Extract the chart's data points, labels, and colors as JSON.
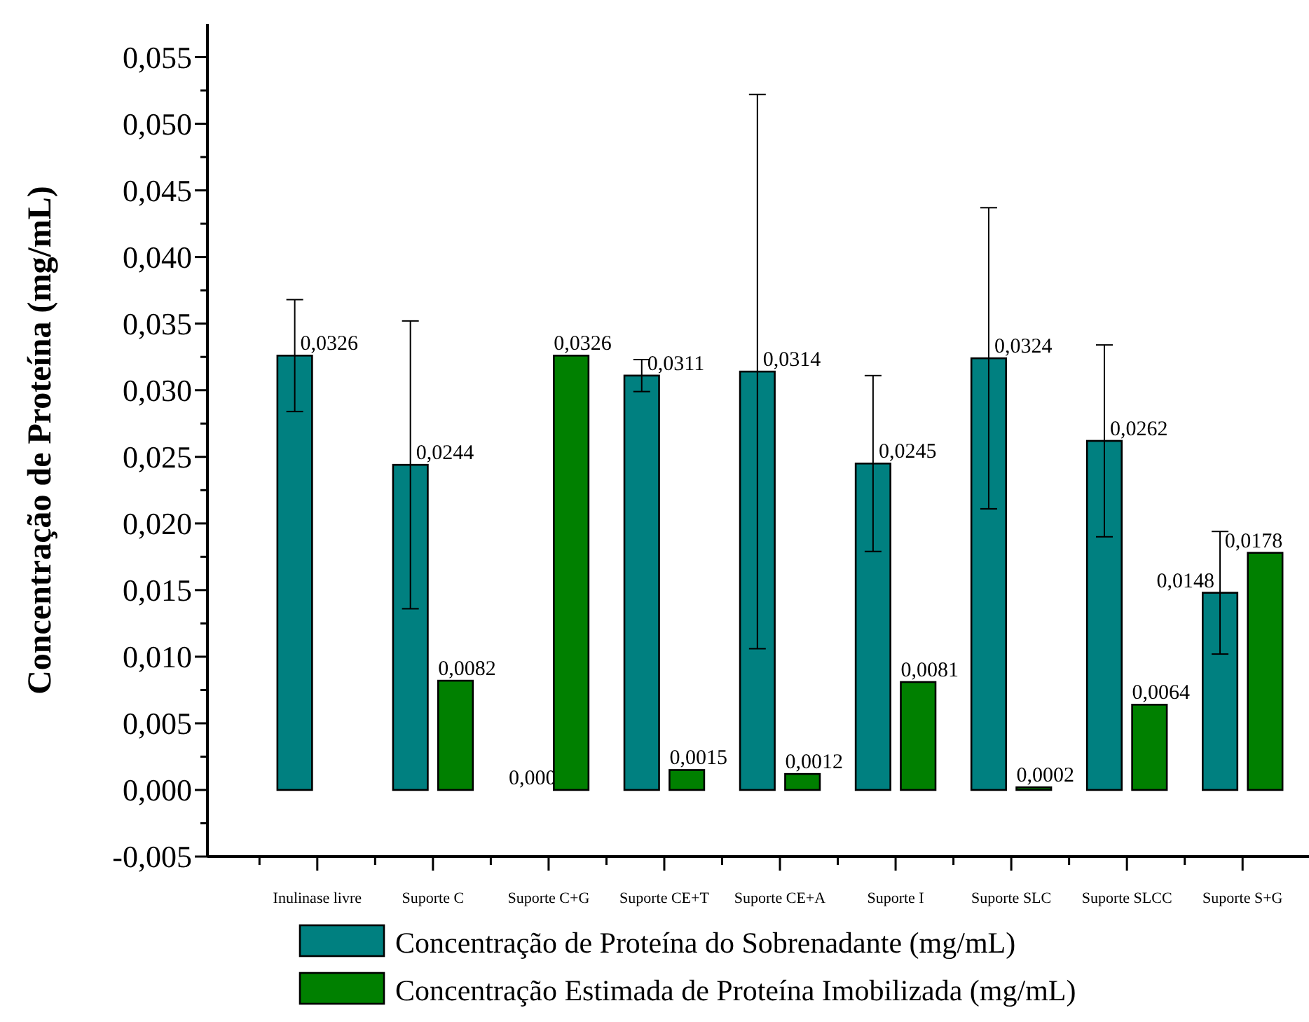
{
  "chart_data": {
    "type": "bar",
    "ylabel": "Concentração de Proteína (mg/mL)",
    "categories": [
      "Inulinase livre",
      "Suporte C",
      "Suporte C+G",
      "Suporte CE+T",
      "Suporte CE+A",
      "Suporte I",
      "Suporte SLC",
      "Suporte SLCC",
      "Suporte S+G"
    ],
    "series": [
      {
        "name": "Concentração de Proteína do Sobrenadante (mg/mL)",
        "color": "#008080",
        "values": [
          0.0326,
          0.0244,
          0,
          0.0311,
          0.0314,
          0.0245,
          0.0324,
          0.0262,
          0.0148
        ],
        "errors": [
          0.0042,
          0.0108,
          null,
          0.0012,
          0.0208,
          0.0066,
          0.0113,
          0.0072,
          0.0046
        ],
        "value_labels": [
          "0,0326",
          "0,0244",
          "0,000",
          "0,0311",
          "0,0314",
          "0,0245",
          "0,0324",
          "0,0262",
          "0,0148"
        ]
      },
      {
        "name": "Concentração Estimada de Proteína Imobilizada (mg/mL)",
        "color": "#008000",
        "values": [
          null,
          0.0082,
          0.0326,
          0.0015,
          0.0012,
          0.0081,
          0.0002,
          0.0064,
          0.0178
        ],
        "value_labels": [
          null,
          "0,0082",
          "0,0326",
          "0,0015",
          "0,0012",
          "0,0081",
          "0,0002",
          "0,0064",
          "0,0178"
        ]
      }
    ],
    "ylim": [
      -0.005,
      0.0575
    ],
    "yticks": [
      {
        "value": -0.005,
        "label": "-0,005"
      },
      {
        "value": -0.0025,
        "label": null
      },
      {
        "value": 0,
        "label": "0,000"
      },
      {
        "value": 0.0025,
        "label": null
      },
      {
        "value": 0.005,
        "label": "0,005"
      },
      {
        "value": 0.0075,
        "label": null
      },
      {
        "value": 0.01,
        "label": "0,010"
      },
      {
        "value": 0.0125,
        "label": null
      },
      {
        "value": 0.015,
        "label": "0,015"
      },
      {
        "value": 0.0175,
        "label": null
      },
      {
        "value": 0.02,
        "label": "0,020"
      },
      {
        "value": 0.0225,
        "label": null
      },
      {
        "value": 0.025,
        "label": "0,025"
      },
      {
        "value": 0.0275,
        "label": null
      },
      {
        "value": 0.03,
        "label": "0,030"
      },
      {
        "value": 0.0325,
        "label": null
      },
      {
        "value": 0.035,
        "label": "0,035"
      },
      {
        "value": 0.0375,
        "label": null
      },
      {
        "value": 0.04,
        "label": "0,040"
      },
      {
        "value": 0.0425,
        "label": null
      },
      {
        "value": 0.045,
        "label": "0,045"
      },
      {
        "value": 0.0475,
        "label": null
      },
      {
        "value": 0.05,
        "label": "0,050"
      },
      {
        "value": 0.0525,
        "label": null
      },
      {
        "value": 0.055,
        "label": "0,055"
      }
    ],
    "grid": false,
    "legend": "bottom"
  }
}
